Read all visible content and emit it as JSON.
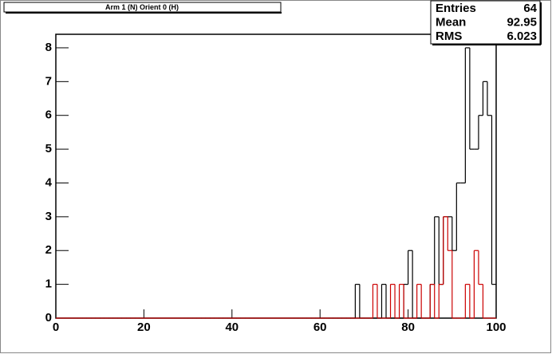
{
  "chart_data": {
    "type": "histogram",
    "title": "Arm 1 (N) Orient 0 (H)",
    "bins": [
      0,
      1,
      2,
      3,
      4,
      5,
      6,
      7,
      8,
      9,
      10,
      11,
      12,
      13,
      14,
      15,
      16,
      17,
      18,
      19,
      20,
      21,
      22,
      23,
      24,
      25,
      26,
      27,
      28,
      29,
      30,
      31,
      32,
      33,
      34,
      35,
      36,
      37,
      38,
      39,
      40,
      41,
      42,
      43,
      44,
      45,
      46,
      47,
      48,
      49,
      50,
      51,
      52,
      53,
      54,
      55,
      56,
      57,
      58,
      59,
      60,
      61,
      62,
      63,
      64,
      65,
      66,
      67,
      68,
      69,
      70,
      71,
      72,
      73,
      74,
      75,
      76,
      77,
      78,
      79,
      80,
      81,
      82,
      83,
      84,
      85,
      86,
      87,
      88,
      89,
      90,
      91,
      92,
      93,
      94,
      95,
      96,
      97,
      98,
      99,
      100
    ],
    "series": [
      {
        "color": "#000000",
        "values": [
          0,
          0,
          0,
          0,
          0,
          0,
          0,
          0,
          0,
          0,
          0,
          0,
          0,
          0,
          0,
          0,
          0,
          0,
          0,
          0,
          0,
          0,
          0,
          0,
          0,
          0,
          0,
          0,
          0,
          0,
          0,
          0,
          0,
          0,
          0,
          0,
          0,
          0,
          0,
          0,
          0,
          0,
          0,
          0,
          0,
          0,
          0,
          0,
          0,
          0,
          0,
          0,
          0,
          0,
          0,
          0,
          0,
          0,
          0,
          0,
          0,
          0,
          0,
          0,
          0,
          0,
          0,
          0,
          1,
          0,
          0,
          0,
          0,
          0,
          1,
          0,
          0,
          0,
          0,
          1,
          2,
          0,
          0,
          0,
          0,
          1,
          3,
          1,
          3,
          3,
          2,
          4,
          4,
          8,
          5,
          5,
          6,
          7,
          6,
          1
        ]
      },
      {
        "color": "#cc0000",
        "values": [
          0,
          0,
          0,
          0,
          0,
          0,
          0,
          0,
          0,
          0,
          0,
          0,
          0,
          0,
          0,
          0,
          0,
          0,
          0,
          0,
          0,
          0,
          0,
          0,
          0,
          0,
          0,
          0,
          0,
          0,
          0,
          0,
          0,
          0,
          0,
          0,
          0,
          0,
          0,
          0,
          0,
          0,
          0,
          0,
          0,
          0,
          0,
          0,
          0,
          0,
          0,
          0,
          0,
          0,
          0,
          0,
          0,
          0,
          0,
          0,
          0,
          0,
          0,
          0,
          0,
          0,
          0,
          0,
          0,
          0,
          0,
          0,
          1,
          0,
          0,
          0,
          1,
          0,
          1,
          0,
          0,
          0,
          1,
          0,
          0,
          1,
          0,
          1,
          3,
          2,
          0,
          0,
          0,
          1,
          0,
          2,
          1,
          0,
          0,
          0
        ]
      }
    ],
    "xlim": [
      0,
      100
    ],
    "xticks": [
      0,
      20,
      40,
      60,
      80,
      100
    ],
    "ylim": [
      0,
      8.4
    ],
    "yticks": [
      0,
      1,
      2,
      3,
      4,
      5,
      6,
      7,
      8
    ],
    "stats": [
      {
        "label": "Entries",
        "value": 64
      },
      {
        "label": "Mean",
        "value": 92.95
      },
      {
        "label": "RMS",
        "value": 6.023
      }
    ]
  }
}
